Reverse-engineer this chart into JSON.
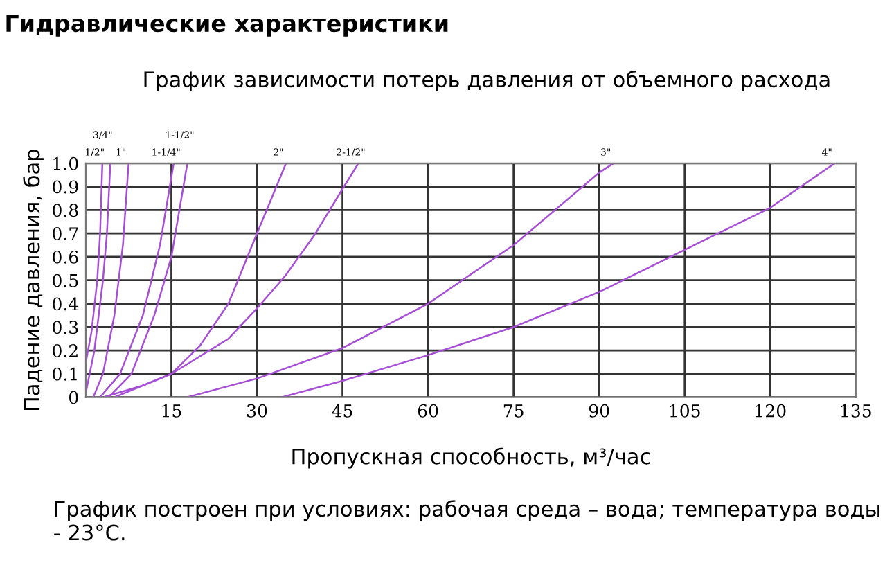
{
  "chart_data": {
    "type": "line",
    "title": "Гидравлические характеристики",
    "subtitle": "График зависимости потерь давления от объемного расхода",
    "xlabel": "Пропускная способность, м³/час",
    "ylabel": "Падение давления, бар",
    "annotations": [
      "График построен при условиях: рабочая среда – вода; температура воды - 23°С."
    ],
    "xlim": [
      0,
      135
    ],
    "xticks": [
      {
        "value": 0,
        "label": null
      },
      15,
      30,
      45,
      60,
      75,
      90,
      105,
      120,
      135
    ],
    "ylim": [
      0,
      1
    ],
    "yticks": [
      0,
      0.1,
      0.2,
      0.3,
      0.4,
      0.5,
      0.6,
      0.7,
      0.8,
      0.9,
      {
        "value": 1,
        "label": "1.0"
      }
    ],
    "grid": true,
    "legend": false,
    "marker": "none",
    "line_style": "solid",
    "series": [
      {
        "name": "1/2\"",
        "color": "#a64fd6",
        "x": [
          0,
          1,
          2,
          2.5,
          2.9
        ],
        "values": [
          0.15,
          0.28,
          0.5,
          0.7,
          1.0
        ]
      },
      {
        "name": "3/4\"",
        "color": "#a64fd6",
        "x": [
          0,
          1.5,
          3,
          3.7,
          4.3
        ],
        "values": [
          0.02,
          0.2,
          0.5,
          0.7,
          1.0
        ]
      },
      {
        "name": "1\"",
        "color": "#a64fd6",
        "x": [
          1.3,
          3,
          5,
          6.5,
          7.5
        ],
        "values": [
          0,
          0.1,
          0.35,
          0.65,
          1.0
        ]
      },
      {
        "name": "1-1/4\"",
        "color": "#a64fd6",
        "x": [
          2.5,
          6,
          10,
          13,
          15.4
        ],
        "values": [
          0,
          0.1,
          0.35,
          0.65,
          1.0
        ]
      },
      {
        "name": "1-1/2\"",
        "color": "#a64fd6",
        "x": [
          4,
          8,
          12,
          15,
          17.8
        ],
        "values": [
          0,
          0.1,
          0.35,
          0.6,
          1.0
        ]
      },
      {
        "name": "2\"",
        "color": "#a64fd6",
        "x": [
          3,
          10,
          15,
          20,
          25,
          30,
          35.1
        ],
        "values": [
          0,
          0.05,
          0.1,
          0.22,
          0.4,
          0.7,
          1.0
        ]
      },
      {
        "name": "2-1/2\"",
        "color": "#a64fd6",
        "x": [
          5,
          15,
          25,
          30,
          35,
          40,
          45,
          47.8
        ],
        "values": [
          0,
          0.1,
          0.25,
          0.38,
          0.52,
          0.69,
          0.89,
          1.0
        ]
      },
      {
        "name": "3\"",
        "color": "#a64fd6",
        "x": [
          17.7,
          30,
          45,
          60,
          75,
          90,
          92.5
        ],
        "values": [
          0,
          0.08,
          0.21,
          0.4,
          0.65,
          0.96,
          1.0
        ]
      },
      {
        "name": "4\"",
        "color": "#a64fd6",
        "x": [
          34.3,
          45,
          60,
          75,
          90,
          105,
          120,
          131.3
        ],
        "values": [
          0,
          0.07,
          0.18,
          0.3,
          0.45,
          0.63,
          0.81,
          1.0
        ]
      }
    ]
  }
}
